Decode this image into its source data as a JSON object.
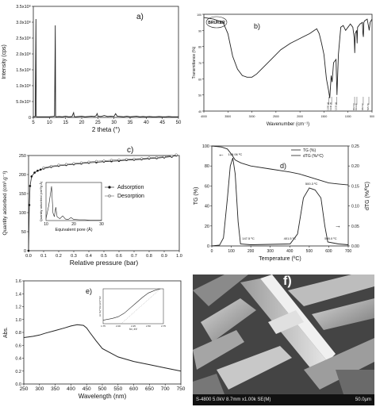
{
  "chart_data": [
    {
      "id": "a",
      "type": "line",
      "label": "a)",
      "xlabel": "2 theta (°)",
      "ylabel": "Intensity (cps)",
      "xlim": [
        5,
        50
      ],
      "ylim": [
        0,
        3500000
      ],
      "xticks": [
        "5",
        "10",
        "15",
        "20",
        "25",
        "30",
        "35",
        "40",
        "45",
        "50"
      ],
      "yticks": [
        "0",
        "5.0x10⁵",
        "1.0x10⁶",
        "1.5x10⁶",
        "2.0x10⁶",
        "2.5x10⁶",
        "3.0x10⁶",
        "3.5x10⁶"
      ],
      "x": [
        5,
        5.6,
        5.8,
        5.9,
        6,
        7,
        8,
        9,
        10,
        11,
        11.6,
        11.8,
        11.9,
        12,
        13,
        14,
        15,
        16,
        17,
        17.5,
        17.7,
        18,
        19,
        20,
        21,
        22,
        23,
        24,
        24.5,
        24.8,
        25,
        26,
        27,
        28,
        29,
        30,
        30.5,
        31,
        32,
        33,
        34,
        35,
        36,
        37,
        38,
        39,
        40,
        41,
        42,
        43,
        44,
        45,
        46,
        47,
        48,
        49,
        50
      ],
      "y": [
        20000,
        30000,
        3100000,
        40000,
        20000,
        20000,
        20000,
        20000,
        20000,
        30000,
        40000,
        2900000,
        40000,
        20000,
        30000,
        20000,
        40000,
        20000,
        30000,
        150000,
        30000,
        20000,
        30000,
        40000,
        20000,
        30000,
        40000,
        30000,
        60000,
        120000,
        40000,
        30000,
        60000,
        30000,
        40000,
        30000,
        120000,
        40000,
        30000,
        20000,
        40000,
        20000,
        30000,
        40000,
        20000,
        30000,
        20000,
        30000,
        20000,
        20000,
        30000,
        20000,
        20000,
        30000,
        20000,
        20000,
        20000
      ]
    },
    {
      "id": "b",
      "type": "line",
      "label": "b)",
      "xlabel": "Wavenumber (cm⁻¹)",
      "ylabel": "Transmittance (%)",
      "xlim": [
        4000,
        500
      ],
      "ylim": [
        40,
        100
      ],
      "xticks": [
        "4000",
        "3500",
        "3000",
        "2500",
        "2000",
        "1500",
        "1000",
        "500"
      ],
      "yticks": [
        "40",
        "50",
        "60",
        "70",
        "80",
        "90",
        "100"
      ],
      "logo_text": "BRUKER",
      "peak_labels": [
        "1395.68",
        "1340.35",
        "1233.68",
        "862.63",
        "814.46",
        "682.62",
        "565.79"
      ],
      "x": [
        4000,
        3800,
        3600,
        3500,
        3400,
        3300,
        3200,
        3100,
        3000,
        2900,
        2800,
        2600,
        2400,
        2200,
        2000,
        1800,
        1700,
        1650,
        1600,
        1550,
        1500,
        1450,
        1400,
        1380,
        1350,
        1330,
        1300,
        1250,
        1230,
        1200,
        1150,
        1100,
        1050,
        1000,
        950,
        900,
        870,
        860,
        850,
        820,
        810,
        800,
        750,
        700,
        690,
        680,
        670,
        650,
        600,
        570,
        560,
        540,
        500
      ],
      "y": [
        98,
        97,
        95,
        88,
        74,
        66,
        62,
        61,
        61,
        63,
        66,
        72,
        78,
        82,
        85,
        88,
        90,
        91,
        88,
        82,
        75,
        60,
        52,
        48,
        62,
        58,
        70,
        72,
        50,
        75,
        92,
        93,
        90,
        92,
        94,
        92,
        85,
        76,
        88,
        90,
        82,
        92,
        94,
        95,
        88,
        86,
        95,
        96,
        97,
        92,
        90,
        95,
        97
      ]
    },
    {
      "id": "c",
      "type": "line",
      "label": "c)",
      "xlabel": "Relative pressure (bar)",
      "ylabel": "Quantity adsorbed (cm³.g⁻¹)",
      "xlim": [
        0,
        1.0
      ],
      "ylim": [
        0,
        250
      ],
      "xticks": [
        "0.0",
        "0.1",
        "0.2",
        "0.3",
        "0.4",
        "0.5",
        "0.6",
        "0.7",
        "0.8",
        "0.9",
        "1.0"
      ],
      "yticks": [
        "0",
        "50",
        "100",
        "150",
        "200",
        "250"
      ],
      "legend": [
        "Adsorption",
        "Desorption"
      ],
      "legend_position": "center-right",
      "series": [
        {
          "name": "Adsorption",
          "x": [
            0,
            0.005,
            0.01,
            0.02,
            0.04,
            0.06,
            0.08,
            0.1,
            0.15,
            0.2,
            0.25,
            0.3,
            0.35,
            0.4,
            0.45,
            0.5,
            0.55,
            0.6,
            0.65,
            0.7,
            0.75,
            0.8,
            0.85,
            0.9,
            0.95,
            0.98
          ],
          "y": [
            0,
            120,
            170,
            195,
            205,
            210,
            213,
            216,
            220,
            223,
            225,
            227,
            229,
            231,
            232,
            234,
            235,
            236,
            238,
            239,
            240,
            242,
            243,
            245,
            247,
            250
          ]
        },
        {
          "name": "Desorption",
          "x": [
            0.98,
            0.95,
            0.9,
            0.85,
            0.8,
            0.75,
            0.7,
            0.65,
            0.6,
            0.55,
            0.5,
            0.45,
            0.4,
            0.35,
            0.3,
            0.25,
            0.2,
            0.15,
            0.1
          ],
          "y": [
            252,
            249,
            247,
            245,
            244,
            242,
            241,
            240,
            239,
            238,
            236,
            235,
            233,
            231,
            229,
            227,
            225,
            222,
            218
          ]
        }
      ],
      "inset": {
        "xlabel": "Equivalent pore (Å)",
        "ylabel": "Quantity adsorbed (cm³/g·Å)",
        "xticks": [
          "10",
          "20",
          "30"
        ],
        "x": [
          10,
          11,
          12,
          12.5,
          13,
          13.5,
          14,
          15,
          16,
          17,
          18,
          19,
          20,
          22,
          24,
          26,
          28,
          30
        ],
        "y": [
          0.05,
          0.4,
          0.9,
          0.2,
          0.1,
          0.35,
          0.1,
          0.05,
          0.12,
          0.04,
          0.03,
          0.08,
          0.03,
          0.02,
          0.02,
          0.01,
          0.01,
          0.01
        ]
      }
    },
    {
      "id": "d",
      "type": "line",
      "label": "d)",
      "xlabel": "Temperature (ºC)",
      "ylabel": "TG (%)",
      "y2label": "dTG (%/ºC)",
      "xlim": [
        0,
        700
      ],
      "ylim": [
        0,
        100
      ],
      "y2lim": [
        0,
        0.25
      ],
      "xticks": [
        "0",
        "100",
        "200",
        "300",
        "400",
        "500",
        "600",
        "700"
      ],
      "yticks": [
        "0",
        "20",
        "40",
        "60",
        "80",
        "100"
      ],
      "y2ticks": [
        "0.00",
        "0.05",
        "0.10",
        "0.15",
        "0.20",
        "0.25"
      ],
      "legend": [
        "TG (%)",
        "dTG (%/ºC)"
      ],
      "legend_position": "top-right",
      "annotations": [
        "108.06 ºC",
        "147.5 ºC",
        "401.5 ºC",
        "500.3 ºC",
        "595.0 ºC"
      ],
      "series": [
        {
          "name": "TG (%)",
          "x": [
            0,
            50,
            80,
            100,
            120,
            150,
            200,
            300,
            400,
            450,
            500,
            550,
            600,
            650,
            700
          ],
          "y": [
            100,
            99,
            97,
            92,
            86,
            83,
            80,
            77,
            74,
            72,
            69,
            66,
            63,
            62,
            61
          ]
        },
        {
          "name": "dTG (%/ºC)",
          "x": [
            0,
            40,
            60,
            80,
            95,
            108,
            120,
            135,
            147.5,
            200,
            300,
            401.5,
            440,
            470,
            500.3,
            530,
            560,
            580,
            595,
            650,
            700
          ],
          "y": [
            0,
            0.002,
            0.02,
            0.12,
            0.2,
            0.22,
            0.18,
            0.06,
            0.005,
            0.003,
            0.004,
            0.005,
            0.03,
            0.12,
            0.145,
            0.14,
            0.12,
            0.05,
            0.01,
            0.005,
            0.003
          ]
        }
      ]
    },
    {
      "id": "e",
      "type": "line",
      "label": "e)",
      "xlabel": "Wavelength (nm)",
      "ylabel": "Abs.",
      "xlim": [
        250,
        750
      ],
      "ylim": [
        0,
        1.6
      ],
      "xticks": [
        "250",
        "300",
        "350",
        "400",
        "450",
        "500",
        "550",
        "600",
        "650",
        "700",
        "750"
      ],
      "yticks": [
        "0.0",
        "0.2",
        "0.4",
        "0.6",
        "0.8",
        "1.0",
        "1.2",
        "1.4",
        "1.6"
      ],
      "x": [
        250,
        280,
        300,
        320,
        350,
        380,
        400,
        420,
        440,
        450,
        460,
        480,
        500,
        550,
        600,
        650,
        700,
        750
      ],
      "y": [
        0.72,
        0.74,
        0.76,
        0.79,
        0.83,
        0.87,
        0.9,
        0.92,
        0.91,
        0.87,
        0.8,
        0.67,
        0.55,
        0.42,
        0.35,
        0.3,
        0.25,
        0.2
      ],
      "inset": {
        "xlabel": "hν, eV",
        "ylabel": "(α hν)^1/2 (eV)^1/2",
        "xticks": [
          "1.75",
          "2.00",
          "2.25",
          "2.50",
          "2.75"
        ],
        "x": [
          1.75,
          1.9,
          2.0,
          2.1,
          2.2,
          2.3,
          2.4,
          2.5,
          2.6,
          2.7
        ],
        "y": [
          0.1,
          0.15,
          0.2,
          0.3,
          0.45,
          0.6,
          0.75,
          0.88,
          0.95,
          1.0
        ]
      }
    }
  ],
  "sem": {
    "label": "f)",
    "caption_left": "S-4800 5.0kV 8.7mm x1.00k SE(M)",
    "caption_right": "50.0μm"
  }
}
